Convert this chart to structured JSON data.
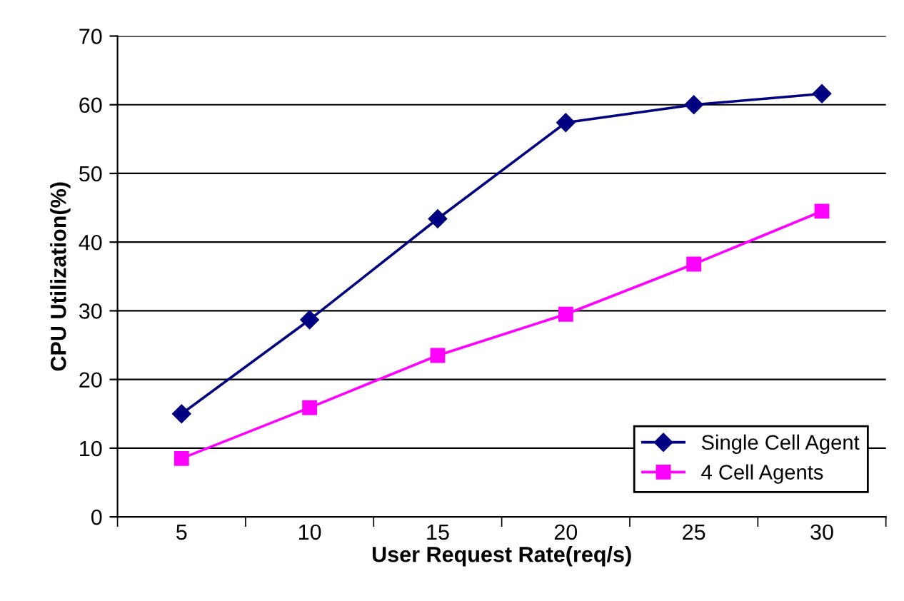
{
  "chart_data": {
    "type": "line",
    "xlabel": "User Request Rate(req/s)",
    "ylabel": "CPU Utilization(%)",
    "categories": [
      "5",
      "10",
      "15",
      "20",
      "25",
      "30"
    ],
    "series": [
      {
        "name": "Single Cell Agent",
        "color": "#000080",
        "marker": "diamond",
        "values": [
          15.0,
          28.7,
          43.4,
          57.4,
          60.0,
          61.6
        ]
      },
      {
        "name": "4 Cell Agents",
        "color": "#ff00ff",
        "marker": "square",
        "values": [
          8.5,
          15.9,
          23.5,
          29.5,
          36.8,
          44.5
        ]
      }
    ],
    "ylim": [
      0,
      70
    ],
    "yticks": [
      0,
      10,
      20,
      30,
      40,
      50,
      60,
      70
    ],
    "grid": "y",
    "legend": "bottom right",
    "line_style": "solid"
  }
}
